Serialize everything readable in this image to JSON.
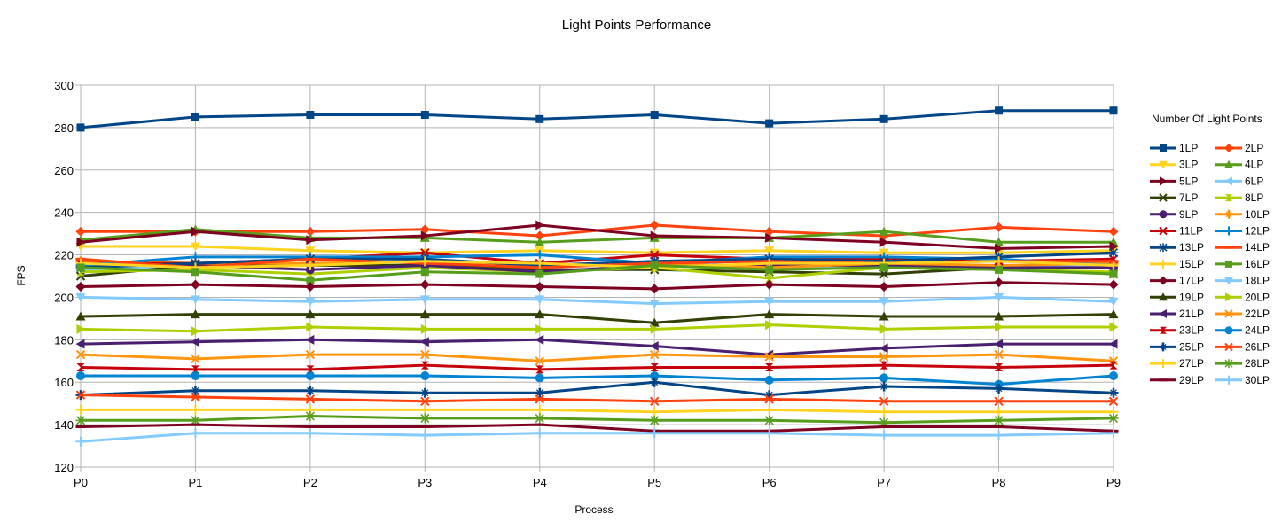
{
  "chart_data": {
    "type": "line",
    "title": "Light Points Performance",
    "xlabel": "Process",
    "ylabel": "FPS",
    "categories": [
      "P0",
      "P1",
      "P2",
      "P3",
      "P4",
      "P5",
      "P6",
      "P7",
      "P8",
      "P9"
    ],
    "ylim": [
      120,
      300
    ],
    "yticks": [
      120,
      140,
      160,
      180,
      200,
      220,
      240,
      260,
      280,
      300
    ],
    "grid": true,
    "legend_title": "Number Of Light Points",
    "legend_position": "right",
    "series": [
      {
        "name": "1LP",
        "color": "#004586",
        "marker": "square",
        "values": [
          280,
          285,
          286,
          286,
          284,
          286,
          282,
          284,
          288,
          288
        ]
      },
      {
        "name": "2LP",
        "color": "#ff420e",
        "marker": "diamond",
        "values": [
          231,
          231,
          231,
          232,
          229,
          234,
          231,
          229,
          233,
          231
        ]
      },
      {
        "name": "3LP",
        "color": "#ffd320",
        "marker": "triangle-down",
        "values": [
          224,
          224,
          222,
          221,
          222,
          221,
          222,
          221,
          221,
          222
        ]
      },
      {
        "name": "4LP",
        "color": "#579d1c",
        "marker": "triangle-up",
        "values": [
          227,
          232,
          228,
          228,
          226,
          228,
          228,
          231,
          226,
          226
        ]
      },
      {
        "name": "5LP",
        "color": "#7e0021",
        "marker": "triangle-right",
        "values": [
          226,
          231,
          227,
          229,
          234,
          229,
          228,
          226,
          223,
          224
        ]
      },
      {
        "name": "6LP",
        "color": "#83caff",
        "marker": "triangle-left",
        "values": [
          213,
          215,
          215,
          216,
          214,
          217,
          214,
          214,
          215,
          214
        ]
      },
      {
        "name": "7LP",
        "color": "#314004",
        "marker": "x",
        "values": [
          210,
          215,
          215,
          215,
          213,
          213,
          212,
          211,
          214,
          211
        ]
      },
      {
        "name": "8LP",
        "color": "#aecf00",
        "marker": "hourglass",
        "values": [
          212,
          213,
          211,
          214,
          212,
          214,
          209,
          214,
          213,
          212
        ]
      },
      {
        "name": "9LP",
        "color": "#4b1f6f",
        "marker": "circle",
        "values": [
          215,
          215,
          213,
          215,
          212,
          215,
          215,
          215,
          214,
          214
        ]
      },
      {
        "name": "10LP",
        "color": "#ff950e",
        "marker": "star",
        "values": [
          217,
          216,
          216,
          217,
          215,
          216,
          214,
          216,
          215,
          216
        ]
      },
      {
        "name": "11LP",
        "color": "#c5000b",
        "marker": "x",
        "values": [
          216,
          216,
          218,
          221,
          216,
          220,
          218,
          218,
          217,
          218
        ]
      },
      {
        "name": "12LP",
        "color": "#0084d1",
        "marker": "plus",
        "values": [
          215,
          219,
          219,
          219,
          220,
          216,
          219,
          219,
          218,
          215
        ]
      },
      {
        "name": "13LP",
        "color": "#004586",
        "marker": "asterisk",
        "values": [
          214,
          216,
          218,
          218,
          215,
          217,
          218,
          217,
          219,
          221
        ]
      },
      {
        "name": "14LP",
        "color": "#ff420e",
        "marker": "dash",
        "values": [
          218,
          214,
          218,
          216,
          214,
          216,
          217,
          216,
          217,
          217
        ]
      },
      {
        "name": "15LP",
        "color": "#ffd320",
        "marker": "plus",
        "values": [
          216,
          214,
          215,
          217,
          216,
          214,
          216,
          216,
          217,
          215
        ]
      },
      {
        "name": "16LP",
        "color": "#579d1c",
        "marker": "square",
        "values": [
          214,
          212,
          208,
          212,
          211,
          215,
          213,
          214,
          213,
          211
        ]
      },
      {
        "name": "17LP",
        "color": "#7e0021",
        "marker": "diamond",
        "values": [
          205,
          206,
          205,
          206,
          205,
          204,
          206,
          205,
          207,
          206
        ]
      },
      {
        "name": "18LP",
        "color": "#83caff",
        "marker": "triangle-down",
        "values": [
          200,
          199,
          198,
          199,
          199,
          197,
          198,
          198,
          200,
          198
        ]
      },
      {
        "name": "19LP",
        "color": "#314004",
        "marker": "triangle-up",
        "values": [
          191,
          192,
          192,
          192,
          192,
          188,
          192,
          191,
          191,
          192
        ]
      },
      {
        "name": "20LP",
        "color": "#aecf00",
        "marker": "triangle-right",
        "values": [
          185,
          184,
          186,
          185,
          185,
          185,
          187,
          185,
          186,
          186
        ]
      },
      {
        "name": "21LP",
        "color": "#4b1f6f",
        "marker": "triangle-left",
        "values": [
          178,
          179,
          180,
          179,
          180,
          177,
          173,
          176,
          178,
          178
        ]
      },
      {
        "name": "22LP",
        "color": "#ff950e",
        "marker": "x",
        "values": [
          173,
          171,
          173,
          173,
          170,
          173,
          172,
          172,
          173,
          170
        ]
      },
      {
        "name": "23LP",
        "color": "#c5000b",
        "marker": "hourglass",
        "values": [
          167,
          166,
          166,
          168,
          166,
          167,
          167,
          168,
          167,
          168
        ]
      },
      {
        "name": "24LP",
        "color": "#0084d1",
        "marker": "circle",
        "values": [
          163,
          163,
          163,
          163,
          162,
          163,
          161,
          162,
          159,
          163
        ]
      },
      {
        "name": "25LP",
        "color": "#004586",
        "marker": "star",
        "values": [
          154,
          156,
          156,
          155,
          155,
          160,
          154,
          158,
          157,
          155
        ]
      },
      {
        "name": "26LP",
        "color": "#ff420e",
        "marker": "x",
        "values": [
          154,
          153,
          152,
          151,
          152,
          151,
          152,
          151,
          151,
          151
        ]
      },
      {
        "name": "27LP",
        "color": "#ffd320",
        "marker": "plus",
        "values": [
          147,
          147,
          147,
          147,
          147,
          146,
          147,
          146,
          146,
          146
        ]
      },
      {
        "name": "28LP",
        "color": "#579d1c",
        "marker": "asterisk",
        "values": [
          142,
          142,
          144,
          143,
          143,
          142,
          142,
          141,
          142,
          143
        ]
      },
      {
        "name": "29LP",
        "color": "#7e0021",
        "marker": "dash",
        "values": [
          139,
          140,
          139,
          139,
          140,
          137,
          137,
          139,
          139,
          137
        ]
      },
      {
        "name": "30LP",
        "color": "#83caff",
        "marker": "plus",
        "values": [
          132,
          136,
          136,
          135,
          136,
          136,
          136,
          135,
          135,
          136
        ]
      }
    ]
  }
}
